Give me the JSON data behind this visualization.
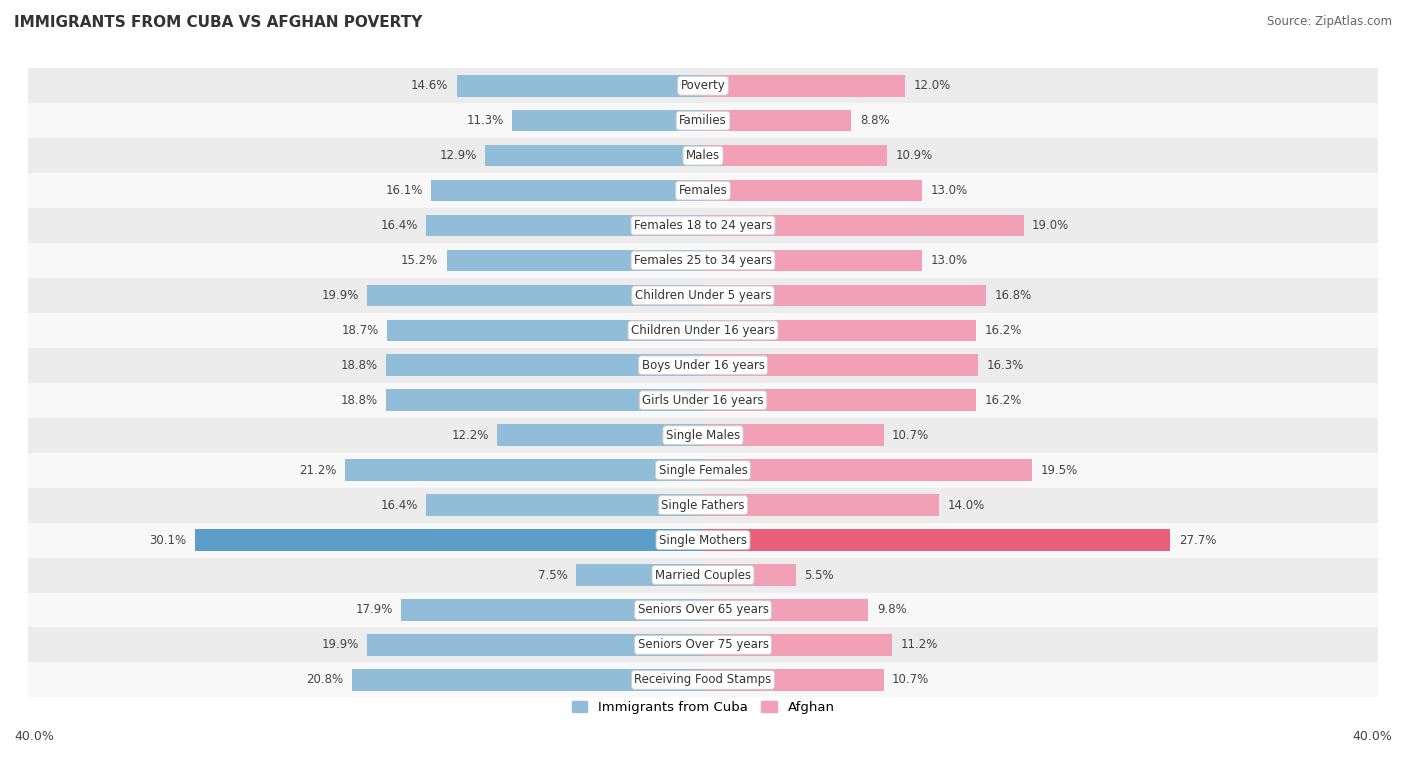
{
  "title": "IMMIGRANTS FROM CUBA VS AFGHAN POVERTY",
  "source": "Source: ZipAtlas.com",
  "categories": [
    "Poverty",
    "Families",
    "Males",
    "Females",
    "Females 18 to 24 years",
    "Females 25 to 34 years",
    "Children Under 5 years",
    "Children Under 16 years",
    "Boys Under 16 years",
    "Girls Under 16 years",
    "Single Males",
    "Single Females",
    "Single Fathers",
    "Single Mothers",
    "Married Couples",
    "Seniors Over 65 years",
    "Seniors Over 75 years",
    "Receiving Food Stamps"
  ],
  "cuba_values": [
    14.6,
    11.3,
    12.9,
    16.1,
    16.4,
    15.2,
    19.9,
    18.7,
    18.8,
    18.8,
    12.2,
    21.2,
    16.4,
    30.1,
    7.5,
    17.9,
    19.9,
    20.8
  ],
  "afghan_values": [
    12.0,
    8.8,
    10.9,
    13.0,
    19.0,
    13.0,
    16.8,
    16.2,
    16.3,
    16.2,
    10.7,
    19.5,
    14.0,
    27.7,
    5.5,
    9.8,
    11.2,
    10.7
  ],
  "cuba_color": "#92bdd9",
  "afghan_color": "#f2a0b8",
  "single_mothers_cuba_color": "#5b9ec9",
  "single_mothers_afghan_color": "#e8607a",
  "bar_height": 0.62,
  "xlim": 40.0,
  "row_odd_color": "#ececec",
  "row_even_color": "#f8f8f8",
  "label_fontsize": 8.5,
  "category_fontsize": 8.5,
  "title_fontsize": 11,
  "legend_cuba": "Immigrants from Cuba",
  "legend_afghan": "Afghan"
}
